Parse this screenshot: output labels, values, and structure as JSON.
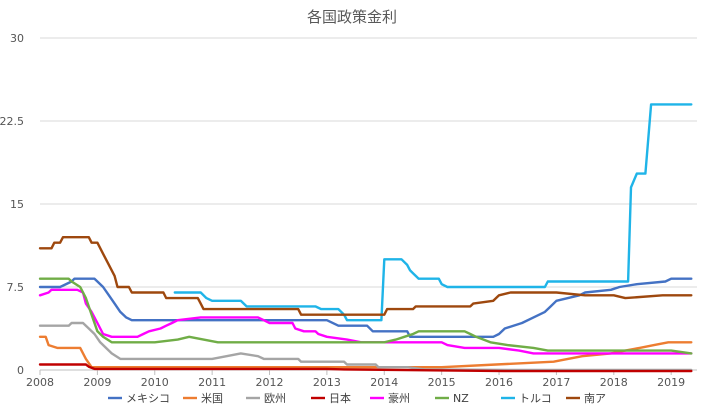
{
  "chart_data": {
    "type": "line",
    "title": "各国政策金利",
    "xlabel": "",
    "ylabel": "",
    "xlim": [
      2008,
      2019.45
    ],
    "ylim": [
      0,
      30
    ],
    "x_ticks": [
      2008,
      2009,
      2010,
      2011,
      2012,
      2013,
      2014,
      2015,
      2016,
      2017,
      2018,
      2019
    ],
    "y_ticks": [
      0,
      7.5,
      15,
      22.5,
      30
    ],
    "y_tick_labels": [
      "0",
      "7.5",
      "15",
      "22.5",
      "30"
    ],
    "grid": "horizontal",
    "legend_position": "bottom",
    "series": [
      {
        "name": "メキシコ",
        "color": "#4472C4",
        "points": [
          [
            2008.0,
            7.5
          ],
          [
            2008.35,
            7.5
          ],
          [
            2008.55,
            8.0
          ],
          [
            2008.6,
            8.25
          ],
          [
            2008.95,
            8.25
          ],
          [
            2009.0,
            8.0
          ],
          [
            2009.1,
            7.5
          ],
          [
            2009.2,
            6.75
          ],
          [
            2009.3,
            6.0
          ],
          [
            2009.4,
            5.25
          ],
          [
            2009.5,
            4.75
          ],
          [
            2009.6,
            4.5
          ],
          [
            2010.0,
            4.5
          ],
          [
            2011.0,
            4.5
          ],
          [
            2012.0,
            4.5
          ],
          [
            2013.0,
            4.5
          ],
          [
            2013.2,
            4.0
          ],
          [
            2013.7,
            4.0
          ],
          [
            2013.8,
            3.5
          ],
          [
            2014.4,
            3.5
          ],
          [
            2014.45,
            3.0
          ],
          [
            2015.9,
            3.0
          ],
          [
            2016.0,
            3.25
          ],
          [
            2016.1,
            3.75
          ],
          [
            2016.4,
            4.25
          ],
          [
            2016.6,
            4.75
          ],
          [
            2016.8,
            5.25
          ],
          [
            2016.9,
            5.75
          ],
          [
            2017.0,
            6.25
          ],
          [
            2017.2,
            6.5
          ],
          [
            2017.4,
            6.75
          ],
          [
            2017.5,
            7.0
          ],
          [
            2017.95,
            7.25
          ],
          [
            2018.1,
            7.5
          ],
          [
            2018.4,
            7.75
          ],
          [
            2018.9,
            8.0
          ],
          [
            2019.0,
            8.25
          ],
          [
            2019.35,
            8.25
          ]
        ]
      },
      {
        "name": "米国",
        "color": "#ED7D31",
        "points": [
          [
            2008.0,
            3.0
          ],
          [
            2008.1,
            3.0
          ],
          [
            2008.15,
            2.25
          ],
          [
            2008.3,
            2.0
          ],
          [
            2008.7,
            2.0
          ],
          [
            2008.8,
            1.0
          ],
          [
            2008.9,
            0.25
          ],
          [
            2009.0,
            0.25
          ],
          [
            2010.0,
            0.25
          ],
          [
            2011.0,
            0.25
          ],
          [
            2012.0,
            0.25
          ],
          [
            2013.0,
            0.25
          ],
          [
            2014.0,
            0.25
          ],
          [
            2015.0,
            0.25
          ],
          [
            2015.95,
            0.5
          ],
          [
            2016.95,
            0.75
          ],
          [
            2017.2,
            1.0
          ],
          [
            2017.45,
            1.25
          ],
          [
            2017.95,
            1.5
          ],
          [
            2018.2,
            1.75
          ],
          [
            2018.45,
            2.0
          ],
          [
            2018.7,
            2.25
          ],
          [
            2018.95,
            2.5
          ],
          [
            2019.35,
            2.5
          ]
        ]
      },
      {
        "name": "欧州",
        "color": "#A5A5A5",
        "points": [
          [
            2008.0,
            4.0
          ],
          [
            2008.5,
            4.0
          ],
          [
            2008.55,
            4.25
          ],
          [
            2008.75,
            4.25
          ],
          [
            2008.85,
            3.75
          ],
          [
            2008.95,
            3.25
          ],
          [
            2009.05,
            2.5
          ],
          [
            2009.15,
            2.0
          ],
          [
            2009.25,
            1.5
          ],
          [
            2009.4,
            1.0
          ],
          [
            2010.0,
            1.0
          ],
          [
            2011.0,
            1.0
          ],
          [
            2011.25,
            1.25
          ],
          [
            2011.5,
            1.5
          ],
          [
            2011.8,
            1.25
          ],
          [
            2011.9,
            1.0
          ],
          [
            2012.5,
            1.0
          ],
          [
            2012.55,
            0.75
          ],
          [
            2013.3,
            0.75
          ],
          [
            2013.35,
            0.5
          ],
          [
            2013.85,
            0.5
          ],
          [
            2013.9,
            0.25
          ],
          [
            2014.4,
            0.25
          ],
          [
            2014.7,
            0.05
          ],
          [
            2016.2,
            0.0
          ],
          [
            2019.35,
            0.0
          ]
        ]
      },
      {
        "name": "日本",
        "color": "#C00000",
        "points": [
          [
            2008.0,
            0.5
          ],
          [
            2008.8,
            0.5
          ],
          [
            2008.85,
            0.3
          ],
          [
            2008.95,
            0.1
          ],
          [
            2010.0,
            0.1
          ],
          [
            2011.0,
            0.1
          ],
          [
            2012.0,
            0.1
          ],
          [
            2013.0,
            0.1
          ],
          [
            2013.3,
            0.05
          ],
          [
            2016.1,
            -0.1
          ],
          [
            2019.35,
            -0.1
          ]
        ]
      },
      {
        "name": "豪州",
        "color": "#FF00FF",
        "points": [
          [
            2008.0,
            6.75
          ],
          [
            2008.15,
            7.0
          ],
          [
            2008.2,
            7.25
          ],
          [
            2008.65,
            7.25
          ],
          [
            2008.75,
            7.0
          ],
          [
            2008.8,
            6.0
          ],
          [
            2008.9,
            5.25
          ],
          [
            2009.0,
            4.25
          ],
          [
            2009.1,
            3.25
          ],
          [
            2009.25,
            3.0
          ],
          [
            2009.7,
            3.0
          ],
          [
            2009.8,
            3.25
          ],
          [
            2009.9,
            3.5
          ],
          [
            2010.1,
            3.75
          ],
          [
            2010.2,
            4.0
          ],
          [
            2010.3,
            4.25
          ],
          [
            2010.4,
            4.5
          ],
          [
            2010.8,
            4.75
          ],
          [
            2011.8,
            4.75
          ],
          [
            2011.9,
            4.5
          ],
          [
            2012.0,
            4.25
          ],
          [
            2012.4,
            4.25
          ],
          [
            2012.45,
            3.75
          ],
          [
            2012.6,
            3.5
          ],
          [
            2012.8,
            3.5
          ],
          [
            2012.85,
            3.25
          ],
          [
            2013.0,
            3.0
          ],
          [
            2013.35,
            2.75
          ],
          [
            2013.6,
            2.5
          ],
          [
            2014.0,
            2.5
          ],
          [
            2015.0,
            2.5
          ],
          [
            2015.1,
            2.25
          ],
          [
            2015.4,
            2.0
          ],
          [
            2016.0,
            2.0
          ],
          [
            2016.35,
            1.75
          ],
          [
            2016.6,
            1.5
          ],
          [
            2017.0,
            1.5
          ],
          [
            2018.0,
            1.5
          ],
          [
            2019.0,
            1.5
          ],
          [
            2019.35,
            1.5
          ]
        ]
      },
      {
        "name": "NZ",
        "color": "#70AD47",
        "points": [
          [
            2008.0,
            8.25
          ],
          [
            2008.5,
            8.25
          ],
          [
            2008.55,
            8.0
          ],
          [
            2008.7,
            7.5
          ],
          [
            2008.8,
            6.5
          ],
          [
            2008.9,
            5.0
          ],
          [
            2009.0,
            3.5
          ],
          [
            2009.1,
            3.0
          ],
          [
            2009.25,
            2.5
          ],
          [
            2010.0,
            2.5
          ],
          [
            2010.4,
            2.75
          ],
          [
            2010.6,
            3.0
          ],
          [
            2011.1,
            2.5
          ],
          [
            2012.0,
            2.5
          ],
          [
            2013.0,
            2.5
          ],
          [
            2014.0,
            2.5
          ],
          [
            2014.2,
            2.75
          ],
          [
            2014.35,
            3.0
          ],
          [
            2014.5,
            3.25
          ],
          [
            2014.6,
            3.5
          ],
          [
            2015.4,
            3.5
          ],
          [
            2015.5,
            3.25
          ],
          [
            2015.6,
            3.0
          ],
          [
            2015.85,
            2.5
          ],
          [
            2016.15,
            2.25
          ],
          [
            2016.6,
            2.0
          ],
          [
            2016.85,
            1.75
          ],
          [
            2017.0,
            1.75
          ],
          [
            2018.0,
            1.75
          ],
          [
            2019.0,
            1.75
          ],
          [
            2019.35,
            1.5
          ]
        ]
      },
      {
        "name": "トルコ",
        "color": "#1FB4E8",
        "points": [
          [
            2010.35,
            7.0
          ],
          [
            2010.8,
            7.0
          ],
          [
            2010.9,
            6.5
          ],
          [
            2011.0,
            6.25
          ],
          [
            2011.5,
            6.25
          ],
          [
            2011.6,
            5.75
          ],
          [
            2012.8,
            5.75
          ],
          [
            2012.9,
            5.5
          ],
          [
            2013.2,
            5.5
          ],
          [
            2013.3,
            5.0
          ],
          [
            2013.35,
            4.5
          ],
          [
            2013.95,
            4.5
          ],
          [
            2014.0,
            10.0
          ],
          [
            2014.3,
            10.0
          ],
          [
            2014.4,
            9.5
          ],
          [
            2014.45,
            9.0
          ],
          [
            2014.5,
            8.75
          ],
          [
            2014.6,
            8.25
          ],
          [
            2014.95,
            8.25
          ],
          [
            2015.0,
            7.75
          ],
          [
            2015.1,
            7.5
          ],
          [
            2016.0,
            7.5
          ],
          [
            2016.8,
            7.5
          ],
          [
            2016.85,
            8.0
          ],
          [
            2018.25,
            8.0
          ],
          [
            2018.3,
            16.5
          ],
          [
            2018.4,
            17.75
          ],
          [
            2018.55,
            17.75
          ],
          [
            2018.65,
            24.0
          ],
          [
            2019.35,
            24.0
          ]
        ]
      },
      {
        "name": "南ア",
        "color": "#9E480E",
        "points": [
          [
            2008.0,
            11.0
          ],
          [
            2008.2,
            11.0
          ],
          [
            2008.25,
            11.5
          ],
          [
            2008.35,
            11.5
          ],
          [
            2008.4,
            12.0
          ],
          [
            2008.85,
            12.0
          ],
          [
            2008.9,
            11.5
          ],
          [
            2009.0,
            11.5
          ],
          [
            2009.1,
            10.5
          ],
          [
            2009.2,
            9.5
          ],
          [
            2009.3,
            8.5
          ],
          [
            2009.35,
            7.5
          ],
          [
            2009.55,
            7.5
          ],
          [
            2009.6,
            7.0
          ],
          [
            2010.15,
            7.0
          ],
          [
            2010.2,
            6.5
          ],
          [
            2010.75,
            6.5
          ],
          [
            2010.8,
            6.0
          ],
          [
            2010.85,
            5.5
          ],
          [
            2011.0,
            5.5
          ],
          [
            2012.0,
            5.5
          ],
          [
            2012.5,
            5.5
          ],
          [
            2012.55,
            5.0
          ],
          [
            2013.0,
            5.0
          ],
          [
            2014.0,
            5.0
          ],
          [
            2014.05,
            5.5
          ],
          [
            2014.5,
            5.5
          ],
          [
            2014.55,
            5.75
          ],
          [
            2015.0,
            5.75
          ],
          [
            2015.5,
            5.75
          ],
          [
            2015.55,
            6.0
          ],
          [
            2015.9,
            6.25
          ],
          [
            2016.0,
            6.75
          ],
          [
            2016.2,
            7.0
          ],
          [
            2017.0,
            7.0
          ],
          [
            2017.5,
            6.75
          ],
          [
            2018.0,
            6.75
          ],
          [
            2018.2,
            6.5
          ],
          [
            2018.85,
            6.75
          ],
          [
            2019.0,
            6.75
          ],
          [
            2019.35,
            6.75
          ]
        ]
      }
    ]
  }
}
